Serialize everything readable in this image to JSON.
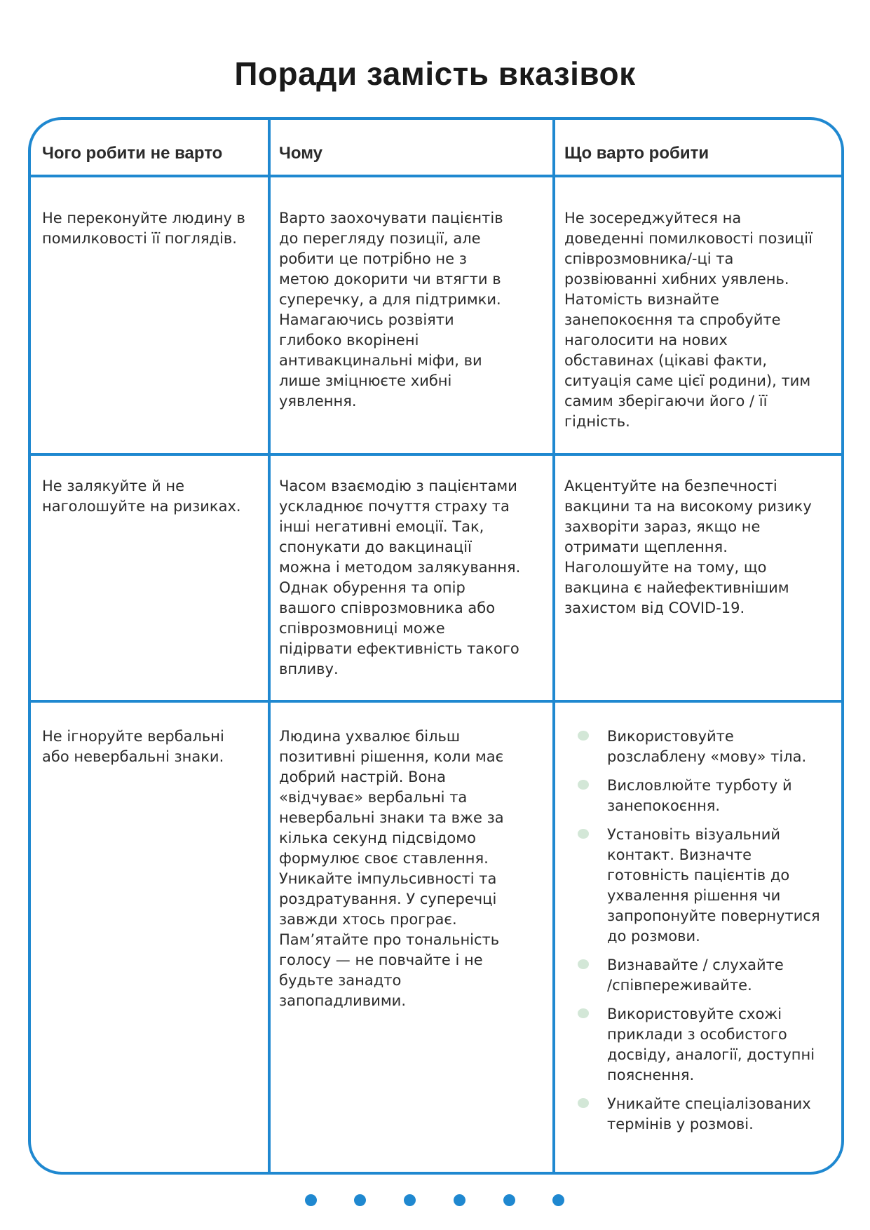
{
  "title": "Поради замість вказівок",
  "headers": [
    "Чого робити не варто",
    "Чому",
    "Що варто робити"
  ],
  "rows": [
    {
      "dont": "Не переконуйте людину в\nпомилковості її поглядів.",
      "why": "Варто заохочувати пацієнтів\nдо перегляду позиції, але\nробити це потрібно не з\nметою докорити чи втягти в\nсуперечку, а для підтримки.\nНамагаючись розвіяти\nглибоко вкорінені\nантивакцинальні міфи, ви\nлише зміцнюєте хибні\nуявлення.",
      "do": "Не зосереджуйтеся на\nдоведенні помилковості позиції\nспіврозмовника/-ці та\nрозвіюванні хибних уявлень.\nНатомість визнайте\nзанепокоєння та спробуйте\nнаголосити на нових\nобставинах (цікаві факти,\nситуація саме цієї родини), тим\nсамим зберігаючи його / її\nгідність."
    },
    {
      "dont": "Не залякуйте й не\nнаголошуйте на ризиках.",
      "why": "Часом взаємодію з пацієнтами\nускладнює почуття страху та\nінші негативні емоції. Так,\nспонукати до вакцинації\nможна і методом залякування.\nОднак обурення та опір\nвашого співрозмовника або\nспіврозмовниці може\nпідірвати ефективність такого\nвпливу.",
      "do": "Акцентуйте на безпечності\nвакцини та на високому ризику\nзахворіти зараз, якщо не\nотримати щеплення.\nНаголошуйте на тому, що\nвакцина є найефективнішим\nзахистом від COVID-19."
    },
    {
      "dont": "Не ігноруйте вербальні\nабо невербальні знаки.",
      "why": "Людина ухвалює більш\nпозитивні рішення, коли має\nдобрий настрій. Вона\n«відчуває» вербальні та\nневербальні знаки та вже за\nкілька секунд підсвідомо\nформулює своє ставлення.\nУникайте імпульсивності та\nроздратування. У суперечці\nзавжди хтось програє.\nПам’ятайте про тональність\nголосу — не повчайте і не\nбудьте занадто\nзапопадливими.",
      "do_list": [
        "Використовуйте\nрозслаблену «мову» тіла.",
        "Висловлюйте турботу й\nзанепокоєння.",
        "Установіть візуальний\nконтакт. Визначте\nготовність пацієнтів до\nухвалення рішення чи\nзапропонуйте повернутися\nдо розмови.",
        "Визнавайте / слухайте\n/співпереживайте.",
        "Використовуйте схожі\nприклади з особистого\nдосвіду, аналогії, доступні\nпояснення.",
        "Уникайте спеціалізованих\nтермінів у розмові."
      ]
    }
  ],
  "pagination": {
    "dots": 6
  },
  "colors": {
    "border": "#1f88d0",
    "bullet": "#d3e7d7",
    "text": "#2b2b2b"
  }
}
